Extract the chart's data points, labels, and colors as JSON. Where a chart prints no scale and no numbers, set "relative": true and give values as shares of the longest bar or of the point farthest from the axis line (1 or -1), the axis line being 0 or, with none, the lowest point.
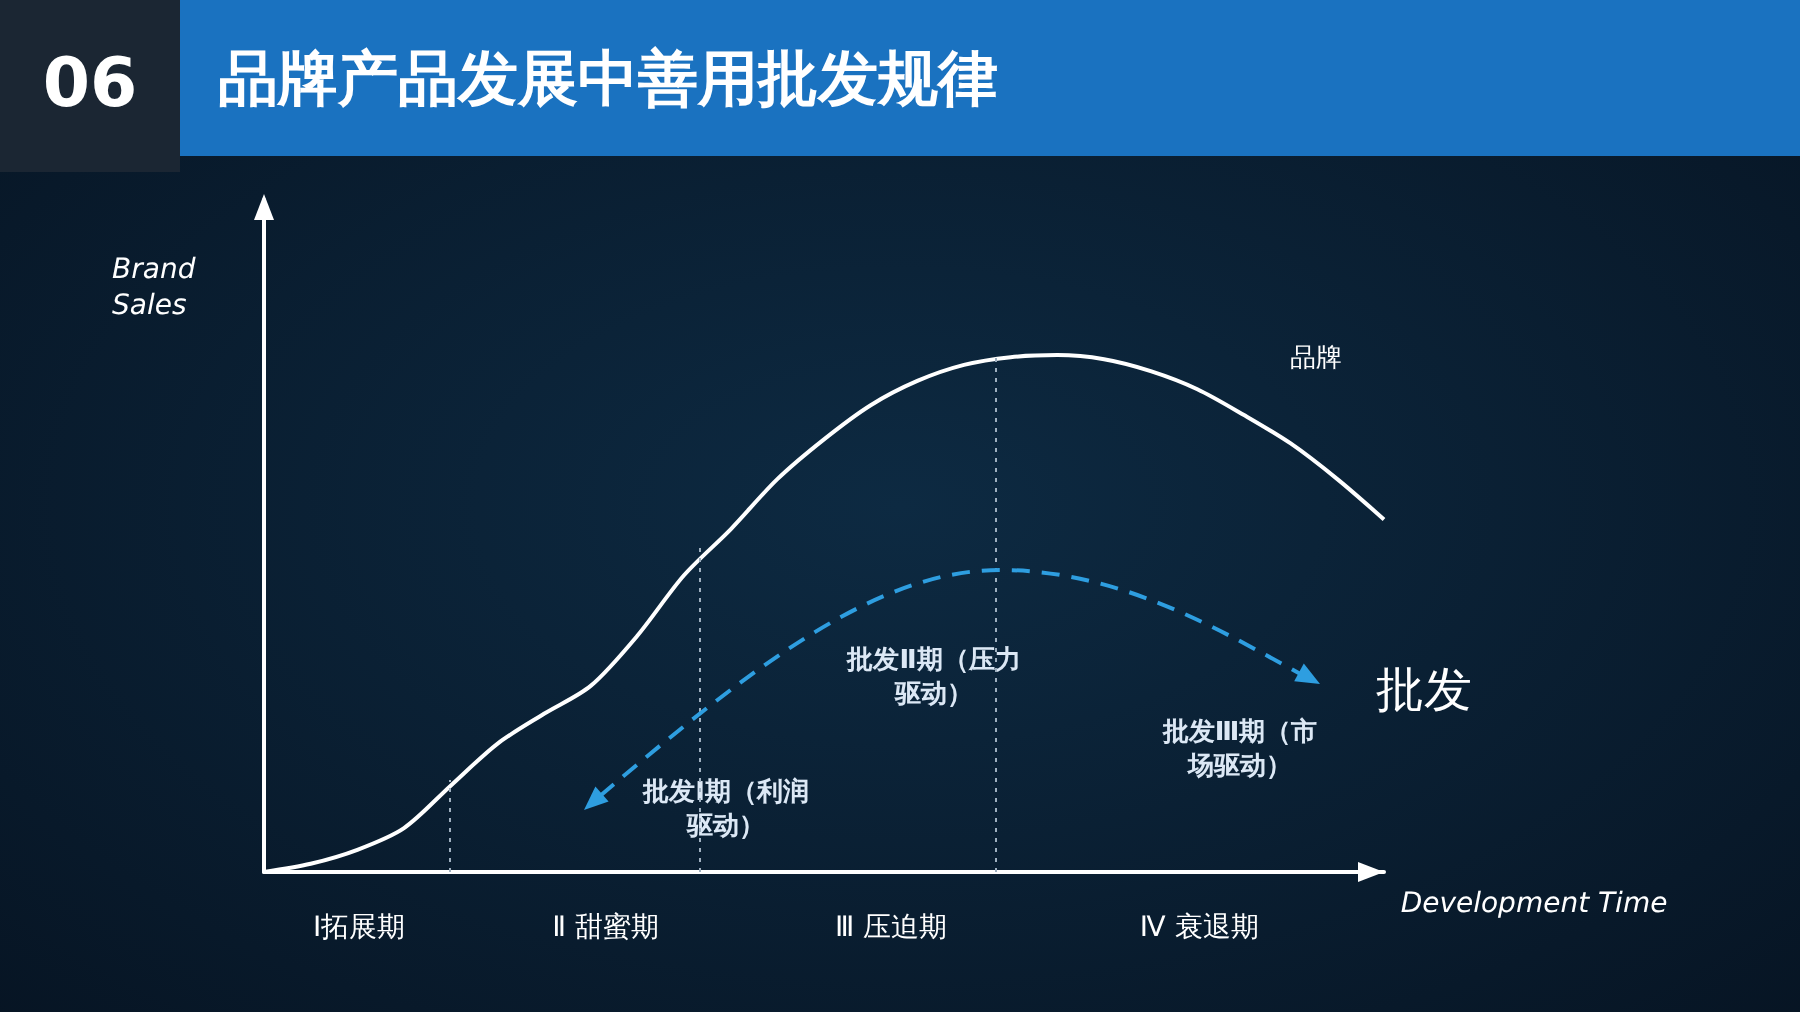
{
  "chart_data": {
    "type": "line",
    "title": "品牌产品发展中善用批发规律",
    "ylabel": "Brand Sales",
    "xlabel": "Development Time",
    "relative": true,
    "grid": false,
    "categories": [
      null,
      null,
      null,
      null,
      null,
      null,
      null,
      null,
      null,
      null,
      null,
      null,
      null,
      null,
      null,
      null,
      null,
      null,
      null,
      null,
      null,
      null,
      null,
      null,
      null
    ],
    "series": [
      {
        "name": "品牌",
        "color": "#ffffff",
        "line_style": "solid",
        "values": [
          0,
          0.016,
          0.043,
          0.085,
          0.167,
          0.248,
          0.306,
          0.36,
          0.457,
          0.574,
          0.663,
          0.76,
          0.837,
          0.903,
          0.95,
          0.981,
          0.996,
          1,
          0.992,
          0.969,
          0.934,
          0.884,
          0.829,
          0.76,
          0.682
        ]
      }
    ],
    "annotations": [
      "06",
      "Ⅰ拓展期",
      "Ⅱ 甜蜜期",
      "Ⅲ 压迫期",
      "Ⅳ 衰退期",
      "批发Ⅰ期（利润驱动）",
      "批发Ⅱ期（压力驱动）",
      "批发Ⅲ期（市场驱动）",
      "批发"
    ]
  }
}
